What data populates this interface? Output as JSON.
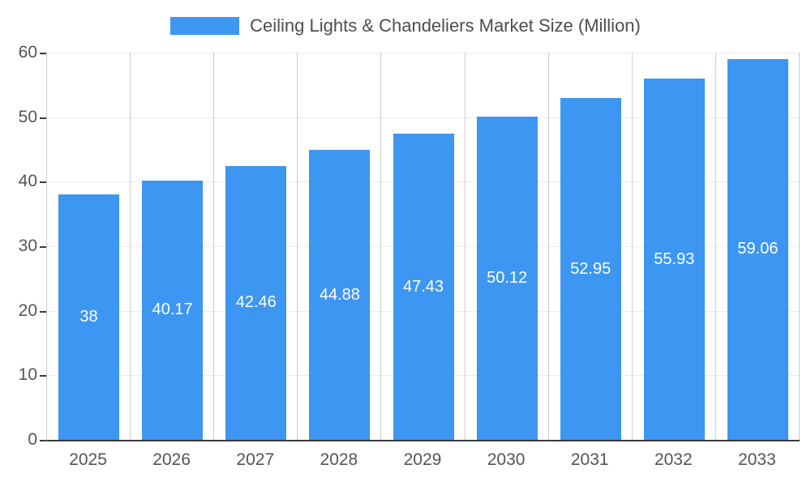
{
  "chart_data": {
    "type": "bar",
    "title": "Ceiling Lights & Chandeliers Market Size (Million)",
    "categories": [
      "2025",
      "2026",
      "2027",
      "2028",
      "2029",
      "2030",
      "2031",
      "2032",
      "2033"
    ],
    "values": [
      38,
      40.17,
      42.46,
      44.88,
      47.43,
      50.12,
      52.95,
      55.93,
      59.06
    ],
    "value_labels": [
      "38",
      "40.17",
      "42.46",
      "44.88",
      "47.43",
      "50.12",
      "52.95",
      "55.93",
      "59.06"
    ],
    "xlabel": "",
    "ylabel": "",
    "ylim": [
      0,
      60
    ],
    "yticks": [
      0,
      10,
      20,
      30,
      40,
      50,
      60
    ],
    "legend_position": "top-center",
    "grid": "vertical-and-horizontal",
    "colors": {
      "bar": "#3d96f1",
      "bar_value_text": "#ffffff",
      "axis_text": "#555555",
      "title_text": "#4d4d4d",
      "axis_line": "#3b3b3b",
      "gridline": "#cccccc"
    }
  }
}
